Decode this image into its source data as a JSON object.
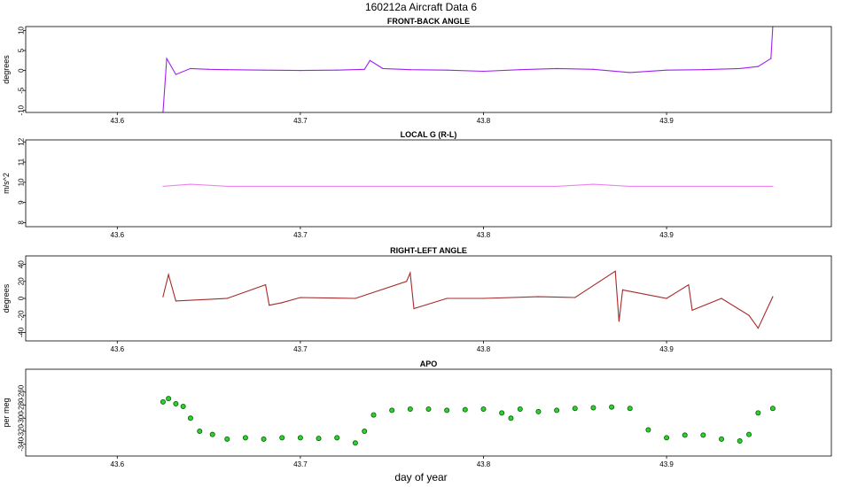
{
  "figure": {
    "title": "160212a    Aircraft Data 6",
    "xlabel": "day of year"
  },
  "chart_data": [
    {
      "type": "line",
      "title": "FRONT-BACK ANGLE",
      "ylabel": "degrees",
      "xlim": [
        43.55,
        43.99
      ],
      "ylim": [
        -10.5,
        11
      ],
      "xticks": [
        "43.6",
        "43.7",
        "43.8",
        "43.9"
      ],
      "yticks": [
        "-10",
        "-5",
        "0",
        "5",
        "10"
      ],
      "grid": false,
      "series": [
        {
          "color": "#a020f0",
          "x": [
            43.625,
            43.627,
            43.632,
            43.64,
            43.65,
            43.66,
            43.68,
            43.7,
            43.72,
            43.735,
            43.738,
            43.745,
            43.76,
            43.78,
            43.8,
            43.82,
            43.84,
            43.86,
            43.88,
            43.9,
            43.92,
            43.94,
            43.95,
            43.957,
            43.958
          ],
          "y": [
            -10.5,
            3,
            -1,
            0.5,
            0.3,
            0.2,
            0.1,
            0,
            0.1,
            0.3,
            2.5,
            0.5,
            0.2,
            0.1,
            -0.2,
            0.2,
            0.5,
            0.3,
            -0.5,
            0.1,
            0.2,
            0.5,
            1,
            3,
            11
          ]
        }
      ]
    },
    {
      "type": "line",
      "title": "LOCAL G (R-L)",
      "ylabel": "m/s^2",
      "xlim": [
        43.55,
        43.99
      ],
      "ylim": [
        7.8,
        12.1
      ],
      "xticks": [
        "43.6",
        "43.7",
        "43.8",
        "43.9"
      ],
      "yticks": [
        "8",
        "9",
        "10",
        "11",
        "12"
      ],
      "grid": false,
      "series": [
        {
          "color": "#ee82ee",
          "x": [
            43.625,
            43.64,
            43.66,
            43.68,
            43.7,
            43.72,
            43.74,
            43.76,
            43.78,
            43.8,
            43.82,
            43.84,
            43.86,
            43.88,
            43.9,
            43.92,
            43.94,
            43.958
          ],
          "y": [
            9.8,
            9.9,
            9.8,
            9.8,
            9.8,
            9.8,
            9.8,
            9.8,
            9.8,
            9.8,
            9.8,
            9.8,
            9.9,
            9.8,
            9.8,
            9.8,
            9.8,
            9.8
          ]
        }
      ]
    },
    {
      "type": "line",
      "title": "RIGHT-LEFT ANGLE",
      "ylabel": "degrees",
      "xlim": [
        43.55,
        43.99
      ],
      "ylim": [
        -50,
        50
      ],
      "xticks": [
        "43.6",
        "43.7",
        "43.8",
        "43.9"
      ],
      "yticks": [
        "-40",
        "-20",
        "0",
        "20",
        "40"
      ],
      "grid": false,
      "series": [
        {
          "color": "#a52a2a",
          "x": [
            43.625,
            43.628,
            43.632,
            43.66,
            43.681,
            43.683,
            43.69,
            43.7,
            43.73,
            43.758,
            43.76,
            43.762,
            43.78,
            43.8,
            43.83,
            43.85,
            43.872,
            43.874,
            43.876,
            43.9,
            43.912,
            43.914,
            43.93,
            43.945,
            43.95,
            43.958
          ],
          "y": [
            2,
            28,
            -3,
            0,
            16,
            -8,
            -5,
            1,
            0,
            20,
            30,
            -12,
            0,
            0,
            2,
            1,
            32,
            -27,
            10,
            0,
            16,
            -14,
            0,
            -20,
            -35,
            2
          ]
        }
      ]
    },
    {
      "type": "scatter",
      "title": "APO",
      "ylabel": "per meg",
      "xlim": [
        43.55,
        43.99
      ],
      "ylim": [
        -358,
        -225
      ],
      "xticks": [
        "43.6",
        "43.7",
        "43.8",
        "43.9"
      ],
      "yticks": [
        "-340",
        "-320",
        "-300",
        "-280",
        "-260"
      ],
      "grid": false,
      "series": [
        {
          "color": "#32cd32",
          "x": [
            43.625,
            43.628,
            43.632,
            43.636,
            43.64,
            43.645,
            43.652,
            43.66,
            43.67,
            43.68,
            43.69,
            43.7,
            43.71,
            43.72,
            43.73,
            43.735,
            43.74,
            43.75,
            43.76,
            43.77,
            43.78,
            43.79,
            43.8,
            43.81,
            43.815,
            43.82,
            43.83,
            43.84,
            43.85,
            43.86,
            43.87,
            43.88,
            43.89,
            43.9,
            43.91,
            43.92,
            43.93,
            43.94,
            43.945,
            43.95,
            43.958
          ],
          "y": [
            -275,
            -270,
            -278,
            -282,
            -300,
            -320,
            -325,
            -332,
            -330,
            -332,
            -330,
            -330,
            -331,
            -330,
            -338,
            -320,
            -295,
            -288,
            -286,
            -286,
            -288,
            -287,
            -286,
            -292,
            -300,
            -286,
            -290,
            -288,
            -285,
            -284,
            -283,
            -285,
            -318,
            -330,
            -326,
            -326,
            -332,
            -335,
            -325,
            -292,
            -285
          ]
        }
      ]
    }
  ]
}
